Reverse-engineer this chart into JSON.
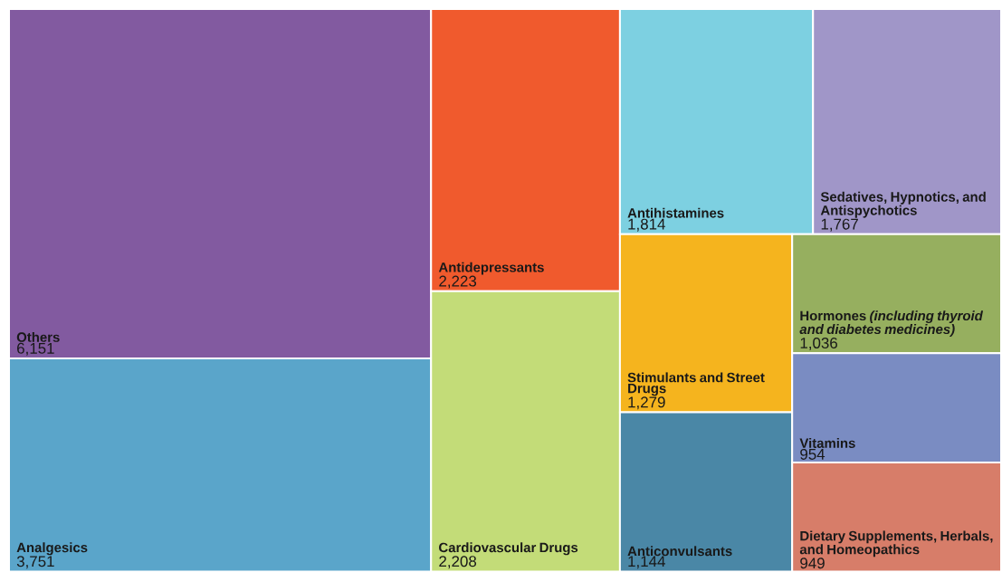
{
  "chart_data": {
    "type": "other",
    "categories": [
      "Others",
      "Analgesics",
      "Antidepressants",
      "Cardiovascular Drugs",
      "Antihistamines",
      "Sedatives, Hypnotics, and Antispychotics",
      "Stimulants and Street Drugs",
      "Anticonvulsants",
      "Hormones *(including thyroid and diabetes medicines)*",
      "Vitamins",
      "Dietary Supplements, Herbals, and Homeopathics"
    ],
    "values": [
      6151,
      3751,
      2223,
      2208,
      1814,
      1767,
      1279,
      1144,
      1036,
      954,
      949
    ],
    "value_labels": [
      "6,151",
      "3,751",
      "2,223",
      "2,208",
      "1,814",
      "1,767",
      "1,279",
      "1,144",
      "1,036",
      "954",
      "949"
    ],
    "colors": [
      "#825aa0",
      "#5aa5ca",
      "#f05a2d",
      "#c3dc78",
      "#7dd0e1",
      "#a096c8",
      "#f5b41e",
      "#4a87a6",
      "#96af5f",
      "#7a8cc2",
      "#d77d69"
    ]
  }
}
